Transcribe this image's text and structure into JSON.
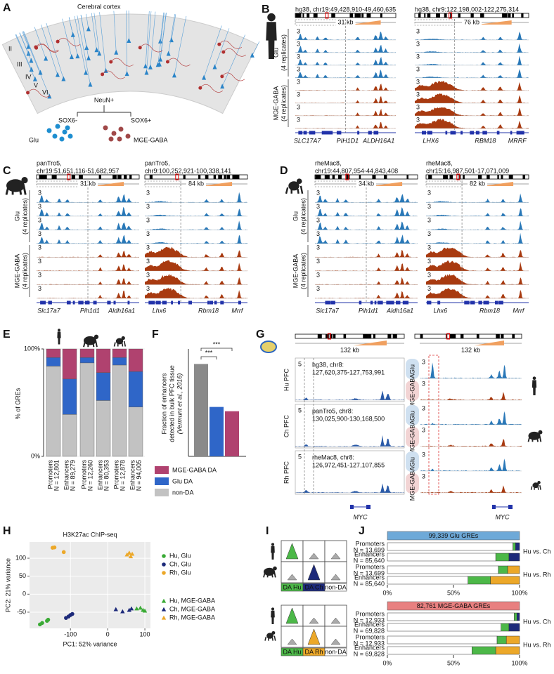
{
  "panel_a": {
    "label": "A",
    "title": "Cerebral cortex",
    "layers": [
      "II",
      "III",
      "IV",
      "V",
      "VI"
    ],
    "root": "NeuN+",
    "branches": [
      {
        "marker": "SOX6-",
        "cell_type": "Glu"
      },
      {
        "marker": "SOX6+",
        "cell_type": "MGE-GABA"
      }
    ]
  },
  "track_max": "3",
  "panel_b": {
    "label": "B",
    "groups": [
      {
        "name": "Glu",
        "note": "(4 replicates)"
      },
      {
        "name": "MGE-GABA",
        "note": "(4 replicates)"
      }
    ],
    "loci": [
      {
        "region": "hg38, chr19:49,428,910-49,460,635",
        "scale": "31 kb",
        "genes": [
          "SLC17A7",
          "PIH1D1",
          "ALDH16A1"
        ]
      },
      {
        "region": "hg38, chr9:122,198,002-122,275,314",
        "scale": "76 kb",
        "genes": [
          "LHX6",
          "RBM18",
          "MRRF"
        ]
      }
    ]
  },
  "panel_c": {
    "label": "C",
    "groups": [
      {
        "name": "Glu",
        "note": "(4 replicates)"
      },
      {
        "name": "MGE-GABA",
        "note": "(4 replicates)"
      }
    ],
    "loci": [
      {
        "assembly": "panTro5,",
        "region": "chr19:51,651,116-51,682,957",
        "scale": "31 kb",
        "genes": [
          "Slc17a7",
          "Pih1d1",
          "Aldh16a1"
        ]
      },
      {
        "assembly": "panTro5,",
        "region": "chr9:100,252,921-100,338,141",
        "scale": "84 kb",
        "genes": [
          "Lhx6",
          "Rbm18",
          "Mrrf"
        ]
      }
    ]
  },
  "panel_d": {
    "label": "D",
    "groups": [
      {
        "name": "Glu",
        "note": "(4 replicates)"
      },
      {
        "name": "MGE-GABA",
        "note": "(4 replicates)"
      }
    ],
    "loci": [
      {
        "assembly": "rheMac8,",
        "region": "chr19:44,807,954-44,843,408",
        "scale": "34 kb",
        "genes": [
          "Slc17a7",
          "Pih1d1",
          "Aldh16a1"
        ]
      },
      {
        "assembly": "rheMac8,",
        "region": "chr15:16,987,501-17,071,009",
        "scale": "82 kb",
        "genes": [
          "Lhx6",
          "Rbm18",
          "Mrrf"
        ]
      }
    ]
  },
  "panel_e": {
    "label": "E",
    "type": "bar",
    "stacked": true,
    "y_label": "% of GREs",
    "ylim": [
      0,
      100
    ],
    "yticks": [
      {
        "value": 0,
        "label": "0%"
      },
      {
        "value": 100,
        "label": "100%"
      }
    ],
    "categories": [
      [
        "Promoters",
        "N = 12,801"
      ],
      [
        "Enhancers",
        "N = 89,279"
      ],
      [
        "Promoters",
        "N = 12,260"
      ],
      [
        "Enhancers",
        "N = 80,353"
      ],
      [
        "Promoters",
        "N = 12,878"
      ],
      [
        "Enhancers",
        "N = 94,005"
      ]
    ],
    "series": [
      {
        "name": "MGE-GABA DA",
        "color": "#b0426f",
        "values": [
          8,
          28,
          8,
          22,
          8,
          21
        ]
      },
      {
        "name": "Glu DA",
        "color": "#2f66c8",
        "values": [
          8,
          33,
          5,
          26,
          7,
          33
        ]
      },
      {
        "name": "non-DA",
        "color": "#c2c2c2",
        "values": [
          84,
          39,
          87,
          52,
          85,
          46
        ]
      }
    ]
  },
  "panel_f": {
    "label": "F",
    "type": "bar",
    "y_label": [
      "Fraction of enhancers",
      "detected in bulk PFC tissue"
    ],
    "y_note": "(Vermunt et al., 2016)",
    "ylim": [
      0,
      50
    ],
    "values": [
      43,
      23,
      21
    ],
    "colors": [
      "#8a8a8a",
      "#2f66c8",
      "#b0426f"
    ],
    "significance": [
      "***",
      "***"
    ]
  },
  "panel_g": {
    "label": "G",
    "scale": "132 kb",
    "left_max": "5",
    "right_max": "3",
    "gene": "MYC",
    "cell_types": [
      "Glu",
      "MGE-GABA"
    ],
    "rows": [
      {
        "name": "Hu PFC",
        "assembly": "hg38, chr8:",
        "region": "127,620,375-127,753,991"
      },
      {
        "name": "Ch PFC",
        "assembly": "panTro5, chr8:",
        "region": "130,025,900-130,168,500"
      },
      {
        "name": "Rh PFC",
        "assembly": "rheMac8, chr8:",
        "region": "126,972,451-127,107,855"
      }
    ]
  },
  "panel_h": {
    "label": "H",
    "type": "scatter",
    "title": "H3K27ac ChIP-seq",
    "x_label": "PC1: 52% variance",
    "y_label": "PC2: 21% variance",
    "xlim": [
      -210,
      115
    ],
    "ylim": [
      -95,
      145
    ],
    "xticks": [
      -100,
      0,
      100
    ],
    "yticks": [
      -50,
      0,
      50,
      100
    ],
    "grid": true,
    "series": [
      {
        "name": "Hu, Glu",
        "color": "#3aaa35",
        "marker": "circle",
        "x": [
          -182,
          -176,
          -163,
          -160
        ],
        "y": [
          -84,
          -80,
          -74,
          -71
        ]
      },
      {
        "name": "Ch, Glu",
        "color": "#1d2a7a",
        "marker": "circle",
        "x": [
          -112,
          -105,
          -100,
          -95
        ],
        "y": [
          -66,
          -62,
          -58,
          -55
        ]
      },
      {
        "name": "Rh, Glu",
        "color": "#eca829",
        "marker": "circle",
        "x": [
          -148,
          -143,
          -118
        ],
        "y": [
          129,
          130,
          117
        ]
      },
      {
        "name": "Hu, MGE-GABA",
        "color": "#3aaa35",
        "marker": "triangle",
        "x": [
          78,
          88,
          95,
          100
        ],
        "y": [
          -40,
          -38,
          -44,
          -46
        ]
      },
      {
        "name": "Ch, MGE-GABA",
        "color": "#1d2a7a",
        "marker": "triangle",
        "x": [
          22,
          40,
          58,
          64
        ],
        "y": [
          -42,
          -48,
          -44,
          -40
        ]
      },
      {
        "name": "Rh, MGE-GABA",
        "color": "#eca829",
        "marker": "triangle",
        "x": [
          52,
          58,
          62,
          66
        ],
        "y": [
          110,
          115,
          105,
          112
        ]
      }
    ]
  },
  "panel_i": {
    "label": "I",
    "blocks": [
      {
        "labels": [
          "DA Hu",
          "DA Ch",
          "non-DA"
        ]
      },
      {
        "labels": [
          "DA Hu",
          "DA Rh",
          "non-DA"
        ]
      }
    ]
  },
  "panel_j": {
    "label": "J",
    "type": "bar",
    "orientation": "horizontal",
    "stacked": true,
    "xlim": [
      0,
      100
    ],
    "xticks": [
      {
        "value": 0,
        "label": "0%"
      },
      {
        "value": 50,
        "label": "50%"
      },
      {
        "value": 100,
        "label": "100%"
      }
    ],
    "blocks": [
      {
        "title": "99,339 Glu GREs",
        "color": "#6ea9d8",
        "comparisons": [
          {
            "label": "Hu vs. Ch",
            "colors": [
              "#ffffff",
              "#4cb848",
              "#1d2a7a"
            ],
            "rows": [
              {
                "label": [
                  "Promoters",
                  "N = 13,699"
                ],
                "values": [
                  95,
                  2,
                  3
                ]
              },
              {
                "label": [
                  "Enhancers",
                  "N = 85,640"
                ],
                "values": [
                  82,
                  10,
                  8
                ]
              }
            ]
          },
          {
            "label": "Hu vs. Rh",
            "colors": [
              "#ffffff",
              "#4cb848",
              "#eca829"
            ],
            "rows": [
              {
                "label": [
                  "Promoters",
                  "N = 13,699"
                ],
                "values": [
                  84,
                  7,
                  9
                ]
              },
              {
                "label": [
                  "Enhancers",
                  "N = 85,640"
                ],
                "values": [
                  61,
                  17,
                  22
                ]
              }
            ]
          }
        ]
      },
      {
        "title": "82,761 MGE-GABA GREs",
        "color": "#e88080",
        "comparisons": [
          {
            "label": "Hu vs. Ch",
            "colors": [
              "#ffffff",
              "#4cb848",
              "#1d2a7a"
            ],
            "rows": [
              {
                "label": [
                  "Promoters",
                  "N = 12,933"
                ],
                "values": [
                  96,
                  2,
                  2
                ]
              },
              {
                "label": [
                  "Enhancers",
                  "N = 69,828"
                ],
                "values": [
                  86,
                  6,
                  8
                ]
              }
            ]
          },
          {
            "label": "Hu vs. Rh",
            "colors": [
              "#ffffff",
              "#4cb848",
              "#eca829"
            ],
            "rows": [
              {
                "label": [
                  "Promoters",
                  "N = 12,933"
                ],
                "values": [
                  83,
                  7,
                  10
                ]
              },
              {
                "label": [
                  "Enhancers",
                  "N = 69,828"
                ],
                "values": [
                  64,
                  18,
                  18
                ]
              }
            ]
          }
        ]
      }
    ]
  }
}
